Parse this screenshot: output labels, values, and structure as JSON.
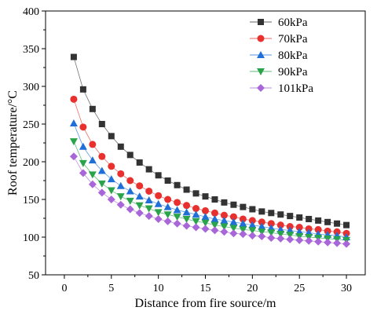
{
  "chart_data": {
    "type": "line",
    "xlabel": "Distance from fire source/m",
    "ylabel": "Roof temperature/°C",
    "xlim": [
      -2,
      32
    ],
    "ylim": [
      50,
      400
    ],
    "xticks": [
      0,
      5,
      10,
      15,
      20,
      25,
      30
    ],
    "yticks": [
      50,
      100,
      150,
      200,
      250,
      300,
      350,
      400
    ],
    "grid": false,
    "legend_position": "top-right",
    "x": [
      1,
      2,
      3,
      4,
      5,
      6,
      7,
      8,
      9,
      10,
      11,
      12,
      13,
      14,
      15,
      16,
      17,
      18,
      19,
      20,
      21,
      22,
      23,
      24,
      25,
      26,
      27,
      28,
      29,
      30
    ],
    "series": [
      {
        "name": "60kPa",
        "marker": "square",
        "color": "#333333",
        "values": [
          339,
          296,
          270,
          250,
          234,
          220,
          209,
          199,
          190,
          182,
          175,
          169,
          163,
          158,
          154,
          150,
          146,
          143,
          140,
          137,
          134,
          132,
          130,
          128,
          126,
          124,
          122,
          120,
          118,
          116
        ]
      },
      {
        "name": "70kPa",
        "marker": "circle",
        "color": "#e8302e",
        "values": [
          283,
          246,
          223,
          207,
          194,
          184,
          175,
          168,
          161,
          155,
          150,
          146,
          142,
          138,
          135,
          132,
          129,
          127,
          124,
          122,
          120,
          118,
          116,
          114,
          113,
          111,
          110,
          108,
          107,
          105
        ]
      },
      {
        "name": "80kPa",
        "marker": "triangle-up",
        "color": "#1f6fd6",
        "values": [
          251,
          220,
          202,
          188,
          177,
          168,
          161,
          154,
          149,
          144,
          140,
          136,
          133,
          130,
          127,
          124,
          122,
          120,
          118,
          116,
          114,
          112,
          110,
          109,
          107,
          106,
          104,
          103,
          102,
          100
        ]
      },
      {
        "name": "90kPa",
        "marker": "triangle-down",
        "color": "#2aa44a",
        "values": [
          227,
          198,
          183,
          171,
          162,
          154,
          148,
          142,
          138,
          133,
          130,
          127,
          124,
          121,
          119,
          116,
          114,
          112,
          110,
          109,
          107,
          106,
          104,
          103,
          101,
          100,
          99,
          98,
          97,
          96
        ]
      },
      {
        "name": "101kPa",
        "marker": "diamond",
        "color": "#a866d9",
        "values": [
          207,
          185,
          170,
          159,
          150,
          143,
          137,
          132,
          128,
          124,
          121,
          118,
          115,
          113,
          111,
          109,
          107,
          105,
          104,
          102,
          101,
          99,
          98,
          97,
          96,
          95,
          94,
          93,
          92,
          91
        ]
      }
    ]
  }
}
